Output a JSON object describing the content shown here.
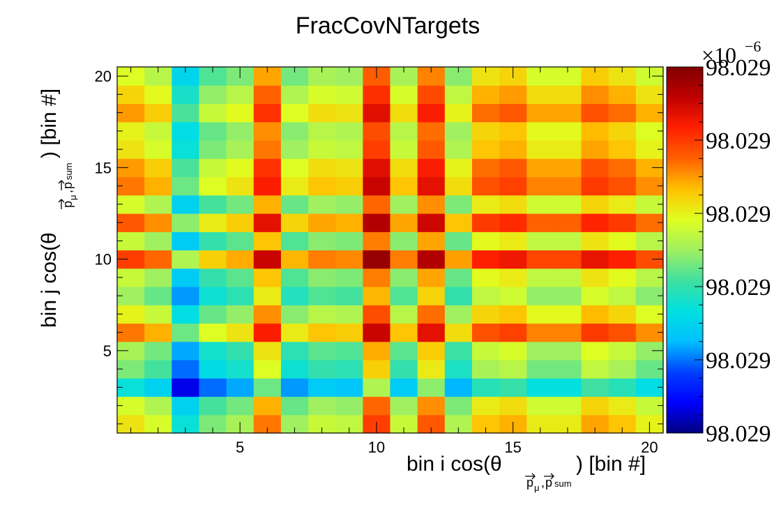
{
  "chart_data": {
    "type": "heatmap",
    "title": "FracCovNTargets",
    "xlabel": {
      "prefix": "bin i cos(θ",
      "sub_vec_a": "p",
      "sub_mu": "μ",
      "sub_sep": ",",
      "sub_vec_b": "p",
      "sub_sum": "sum",
      "suffix": ") [bin #]"
    },
    "ylabel": {
      "prefix": "bin j cos(θ",
      "sub_vec_a": "p",
      "sub_mu": "μ",
      "sub_sep": ",",
      "sub_vec_b": "p",
      "sub_sum": "sum",
      "suffix": ") [bin #]"
    },
    "x_ticks": [
      "5",
      "10",
      "15",
      "20"
    ],
    "y_ticks": [
      "5",
      "10",
      "15",
      "20"
    ],
    "xlim": [
      0.5,
      20.5
    ],
    "ylim": [
      0.5,
      20.5
    ],
    "nx": 20,
    "ny": 20,
    "zlim": [
      0,
      1
    ],
    "grid": false,
    "z_exponent_label": "×10",
    "z_exponent_power": "−6",
    "z_tick_labels": [
      "98.029",
      "98.029",
      "98.029",
      "98.029",
      "98.029",
      "98.029"
    ],
    "row_levels": [
      0.62,
      0.52,
      0.07,
      0.32,
      0.4,
      0.84,
      0.58,
      0.38,
      0.48,
      0.97,
      0.48,
      0.9,
      0.52,
      0.84,
      0.78,
      0.62,
      0.58,
      0.78,
      0.66,
      0.54
    ],
    "col_levels": [
      0.62,
      0.52,
      0.07,
      0.32,
      0.4,
      0.84,
      0.38,
      0.48,
      0.46,
      0.97,
      0.48,
      0.9,
      0.42,
      0.7,
      0.74,
      0.6,
      0.6,
      0.76,
      0.7,
      0.58
    ],
    "colormap": [
      "#000080",
      "#0000ff",
      "#0040ff",
      "#00c0ff",
      "#00e0e0",
      "#40e0a0",
      "#a0f060",
      "#e0ff20",
      "#ffc000",
      "#ff6000",
      "#ff2000",
      "#c00000",
      "#800000"
    ]
  }
}
